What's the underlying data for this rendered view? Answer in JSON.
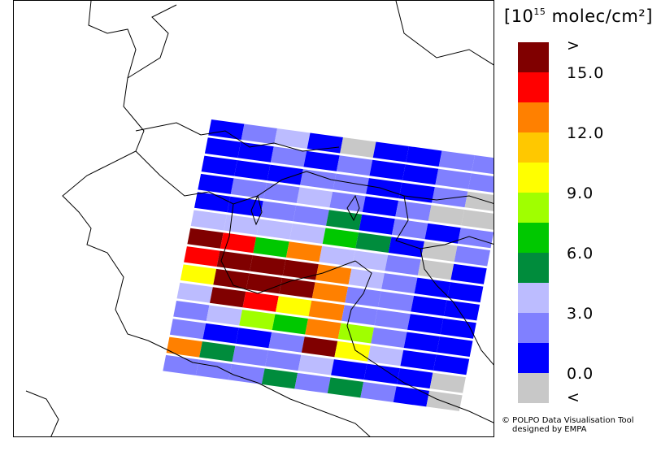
{
  "colorbar": {
    "title_prefix": "[10",
    "title_exponent": "15",
    "title_suffix": " molec/cm²]",
    "over_label": ">",
    "under_label": "<",
    "ticks": [
      "15.0",
      "12.0",
      "9.0",
      "6.0",
      "3.0",
      "0.0"
    ],
    "bins": [
      {
        "label": "over",
        "color": "#800000"
      },
      {
        "label": "13.5-15.0",
        "color": "#ff0000"
      },
      {
        "label": "12.0-13.5",
        "color": "#ff8000"
      },
      {
        "label": "10.5-12.0",
        "color": "#ffc800"
      },
      {
        "label": "9.0-10.5",
        "color": "#ffff00"
      },
      {
        "label": "7.5-9.0",
        "color": "#a0ff00"
      },
      {
        "label": "6.0-7.5",
        "color": "#00c800"
      },
      {
        "label": "4.5-6.0",
        "color": "#008c3c"
      },
      {
        "label": "3.0-4.5",
        "color": "#bcbcff"
      },
      {
        "label": "1.5-3.0",
        "color": "#8080ff"
      },
      {
        "label": "0.0-1.5",
        "color": "#0000ff"
      },
      {
        "label": "under",
        "color": "#c8c8c8"
      }
    ]
  },
  "credit": {
    "line1": "© POLPO Data Visualisation Tool",
    "line2": "designed by EMPA"
  },
  "map": {
    "region": "Alps / Northern Italy",
    "swath_grid_bins": [
      [
        10,
        9,
        8,
        10,
        11,
        10,
        10,
        9,
        9
      ],
      [
        10,
        10,
        9,
        10,
        9,
        10,
        10,
        9,
        9
      ],
      [
        10,
        10,
        10,
        9,
        9,
        10,
        10,
        9,
        11
      ],
      [
        10,
        9,
        9,
        8,
        9,
        10,
        9,
        11,
        11
      ],
      [
        10,
        10,
        9,
        9,
        7,
        10,
        9,
        10,
        9
      ],
      [
        8,
        8,
        8,
        8,
        6,
        7,
        10,
        11,
        9
      ],
      [
        0,
        1,
        6,
        2,
        8,
        8,
        9,
        11,
        10
      ],
      [
        1,
        0,
        0,
        0,
        2,
        8,
        9,
        10,
        10
      ],
      [
        4,
        0,
        0,
        0,
        2,
        9,
        9,
        10,
        10
      ],
      [
        8,
        0,
        1,
        4,
        2,
        9,
        9,
        10,
        10
      ],
      [
        9,
        8,
        5,
        6,
        2,
        5,
        9,
        10,
        10
      ],
      [
        9,
        10,
        10,
        9,
        0,
        4,
        8,
        10,
        10
      ],
      [
        2,
        7,
        9,
        9,
        8,
        10,
        10,
        10,
        11
      ],
      [
        9,
        9,
        9,
        7,
        9,
        7,
        9,
        10,
        11
      ]
    ]
  }
}
